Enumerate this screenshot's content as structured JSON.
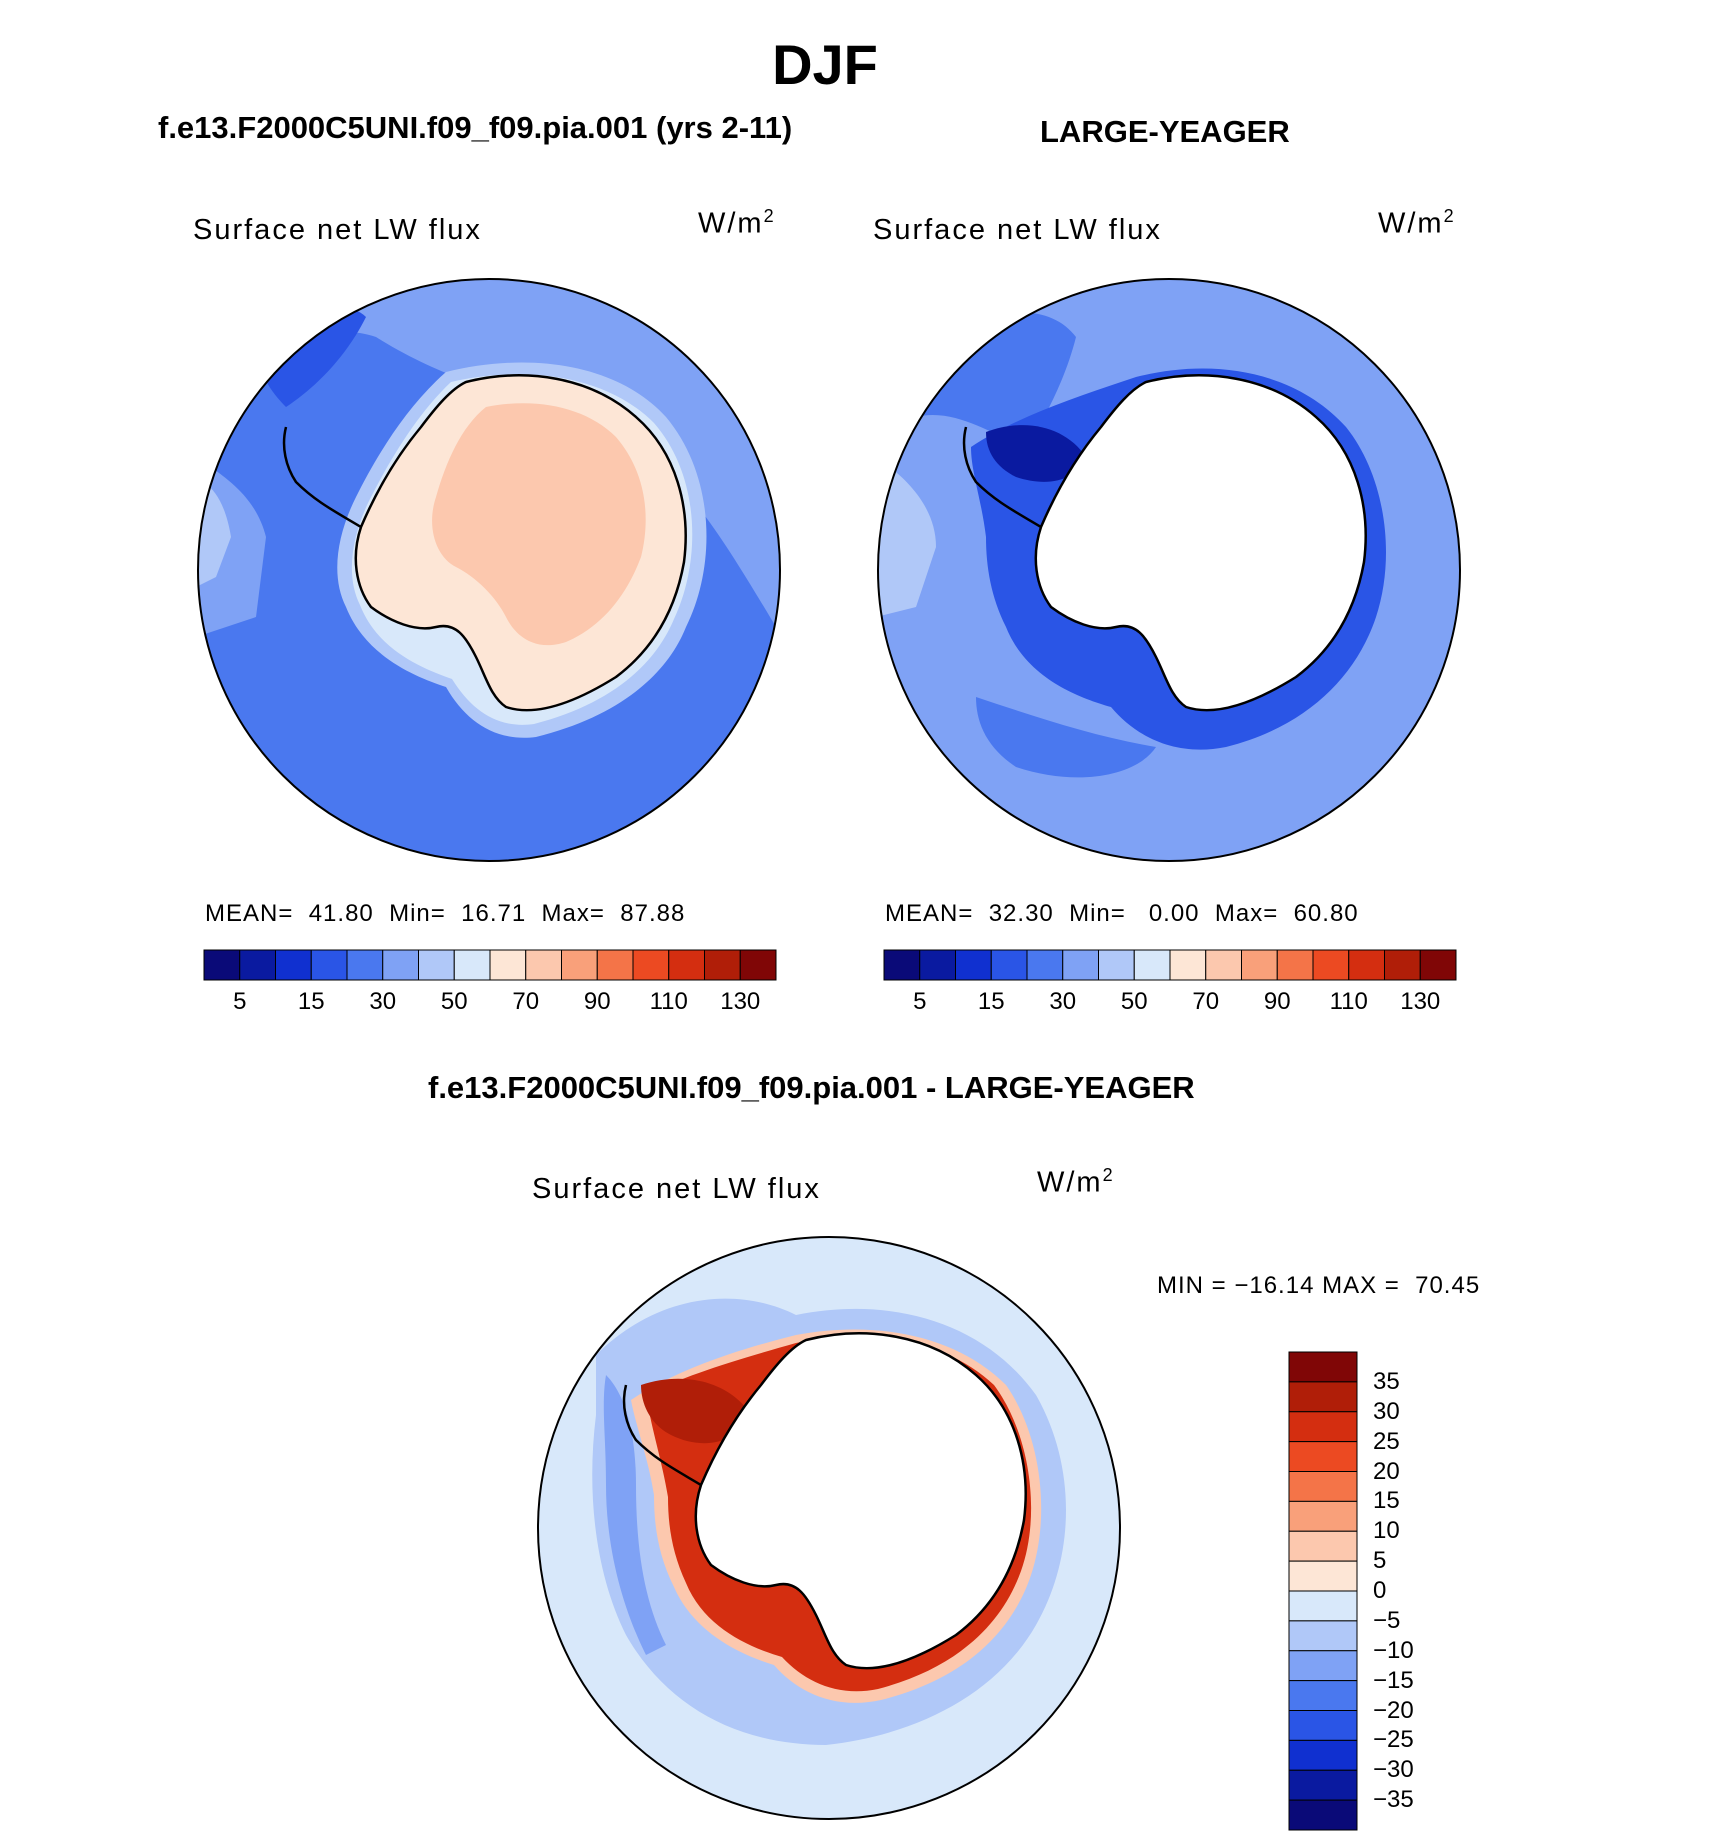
{
  "page_title": "DJF",
  "chart_data": [
    {
      "type": "heatmap",
      "panel_title": "f.e13.F2000C5UNI.f09_f09.pia.001 (yrs 2-11)",
      "variable": "Surface net LW flux",
      "units": "W/m",
      "units_exp": "2",
      "stats": {
        "mean_label": "MEAN=",
        "mean": "41.80",
        "min_label": "Min=",
        "min": "16.71",
        "max_label": "Max=",
        "max": "87.88"
      },
      "colorbar": {
        "colors": [
          "#0a0a78",
          "#0a1aa0",
          "#1030d0",
          "#2a55e6",
          "#4a78ef",
          "#7fa2f5",
          "#b0c8f8",
          "#d8e8fa",
          "#fde6d6",
          "#fcc8ae",
          "#f9a07a",
          "#f47448",
          "#ec4a22",
          "#d42e10",
          "#b01e08",
          "#800606"
        ],
        "tick_labels": [
          "5",
          "15",
          "30",
          "50",
          "70",
          "90",
          "110",
          "130"
        ]
      }
    },
    {
      "type": "heatmap",
      "panel_title": "LARGE-YEAGER",
      "variable": "Surface net LW flux",
      "units": "W/m",
      "units_exp": "2",
      "stats": {
        "mean_label": "MEAN=",
        "mean": "32.30",
        "min_label": "Min=",
        "min": "0.00",
        "max_label": "Max=",
        "max": "60.80"
      },
      "colorbar": {
        "colors": [
          "#0a0a78",
          "#0a1aa0",
          "#1030d0",
          "#2a55e6",
          "#4a78ef",
          "#7fa2f5",
          "#b0c8f8",
          "#d8e8fa",
          "#fde6d6",
          "#fcc8ae",
          "#f9a07a",
          "#f47448",
          "#ec4a22",
          "#d42e10",
          "#b01e08",
          "#800606"
        ],
        "tick_labels": [
          "5",
          "15",
          "30",
          "50",
          "70",
          "90",
          "110",
          "130"
        ]
      }
    },
    {
      "type": "heatmap",
      "panel_title": "f.e13.F2000C5UNI.f09_f09.pia.001 - LARGE-YEAGER",
      "variable": "Surface net LW flux",
      "units": "W/m",
      "units_exp": "2",
      "stats_text": "MIN = −16.14 MAX =  70.45",
      "colorbar": {
        "colors": [
          "#800606",
          "#b01e08",
          "#d42e10",
          "#ec4a22",
          "#f47448",
          "#f9a07a",
          "#fcc8ae",
          "#fde6d6",
          "#d8e8fa",
          "#b0c8f8",
          "#7fa2f5",
          "#4a78ef",
          "#2a55e6",
          "#1030d0",
          "#0a1aa0",
          "#0a0a78"
        ],
        "tick_labels": [
          "35",
          "30",
          "25",
          "20",
          "15",
          "10",
          "5",
          "0",
          "−5",
          "−10",
          "−15",
          "−20",
          "−25",
          "−30",
          "−35"
        ]
      }
    }
  ]
}
